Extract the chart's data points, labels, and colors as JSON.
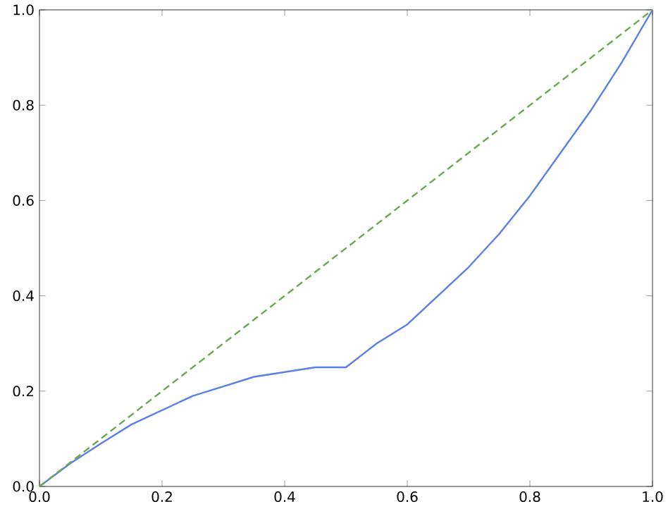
{
  "chart_data": {
    "type": "line",
    "xlim": [
      0,
      1
    ],
    "ylim": [
      0,
      1
    ],
    "xticks": [
      {
        "value": 0,
        "label": "0.0"
      },
      {
        "value": 0.2,
        "label": "0.2"
      },
      {
        "value": 0.4,
        "label": "0.4"
      },
      {
        "value": 0.6,
        "label": "0.6"
      },
      {
        "value": 0.8,
        "label": "0.8"
      },
      {
        "value": 1,
        "label": "1.0"
      }
    ],
    "yticks": [
      {
        "value": 0,
        "label": "0.0"
      },
      {
        "value": 0.2,
        "label": "0.2"
      },
      {
        "value": 0.4,
        "label": "0.4"
      },
      {
        "value": 0.6,
        "label": "0.6"
      },
      {
        "value": 0.8,
        "label": "0.8"
      },
      {
        "value": 1,
        "label": "1.0"
      }
    ],
    "grid": false,
    "marker": "none",
    "series": [
      {
        "color": "#5b7fe6",
        "line_style": "solid",
        "x": [
          0,
          0.05,
          0.1,
          0.15,
          0.2,
          0.25,
          0.3,
          0.35,
          0.4,
          0.45,
          0.5,
          0.55,
          0.6,
          0.65,
          0.7,
          0.75,
          0.8,
          0.85,
          0.9,
          0.95,
          1
        ],
        "values": [
          0,
          0.048,
          0.09,
          0.13,
          0.16,
          0.19,
          0.21,
          0.23,
          0.24,
          0.25,
          0.25,
          0.3,
          0.34,
          0.4,
          0.46,
          0.53,
          0.61,
          0.7,
          0.79,
          0.89,
          1
        ]
      },
      {
        "color": "#6aa84f",
        "line_style": "dashed",
        "x": [
          0,
          1
        ],
        "values": [
          0,
          1
        ]
      }
    ]
  }
}
